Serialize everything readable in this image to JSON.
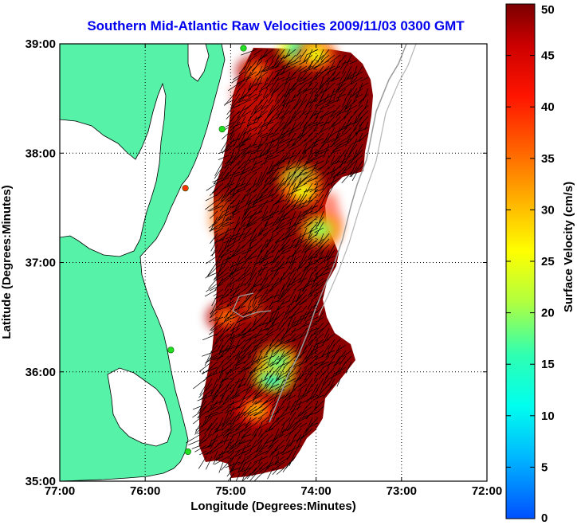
{
  "title": "Southern Mid-Atlantic Raw Velocities 2009/11/03 0300 GMT",
  "x_axis": {
    "label": "Longitude (Degrees:Minutes)",
    "ticks": [
      "77:00",
      "76:00",
      "75:00",
      "74:00",
      "73:00",
      "72:00"
    ]
  },
  "y_axis": {
    "label": "Latitude (Degrees:Minutes)",
    "ticks": [
      "39:00",
      "38:00",
      "37:00",
      "36:00",
      "35:00"
    ]
  },
  "colorbar": {
    "label": "Surface Velocity (cm/s)",
    "ticks": [
      "50",
      "45",
      "40",
      "35",
      "30",
      "25",
      "20",
      "15",
      "10",
      "5",
      "0"
    ],
    "range": [
      0,
      50
    ]
  },
  "colors": {
    "land": "#55f2a8",
    "title": "#0000ee",
    "site_marker": "#22dd22",
    "site_marker_inactive": "#ff3300"
  },
  "chart_data": {
    "type": "heatmap",
    "title": "Southern Mid-Atlantic Raw Velocities 2009/11/03 0300 GMT",
    "xlabel": "Longitude (Degrees:Minutes)",
    "ylabel": "Latitude (Degrees:Minutes)",
    "xlim": [
      -77.0,
      -72.0
    ],
    "ylim": [
      35.0,
      39.0
    ],
    "color_range": [
      0,
      50
    ],
    "colorbar_label": "Surface Velocity (cm/s)",
    "grid": true,
    "velocity_hotspots": [
      {
        "lon": -74.2,
        "lat": 38.95,
        "speed": 15
      },
      {
        "lon": -74.0,
        "lat": 38.9,
        "speed": 25
      },
      {
        "lon": -74.7,
        "lat": 38.75,
        "speed": 35
      },
      {
        "lon": -74.2,
        "lat": 37.75,
        "speed": 18
      },
      {
        "lon": -74.15,
        "lat": 37.65,
        "speed": 25
      },
      {
        "lon": -73.95,
        "lat": 37.3,
        "speed": 20
      },
      {
        "lon": -74.5,
        "lat": 35.95,
        "speed": 12
      },
      {
        "lon": -74.45,
        "lat": 36.1,
        "speed": 18
      },
      {
        "lon": -75.05,
        "lat": 36.5,
        "speed": 35
      },
      {
        "lon": -74.7,
        "lat": 35.65,
        "speed": 30
      }
    ],
    "hf_radar_sites": [
      {
        "lon": -74.85,
        "lat": 38.96,
        "status": "active"
      },
      {
        "lon": -75.1,
        "lat": 38.22,
        "status": "active"
      },
      {
        "lon": -75.53,
        "lat": 37.68,
        "status": "inactive"
      },
      {
        "lon": -75.7,
        "lat": 36.2,
        "status": "active"
      },
      {
        "lon": -75.5,
        "lat": 35.27,
        "status": "active"
      }
    ]
  }
}
